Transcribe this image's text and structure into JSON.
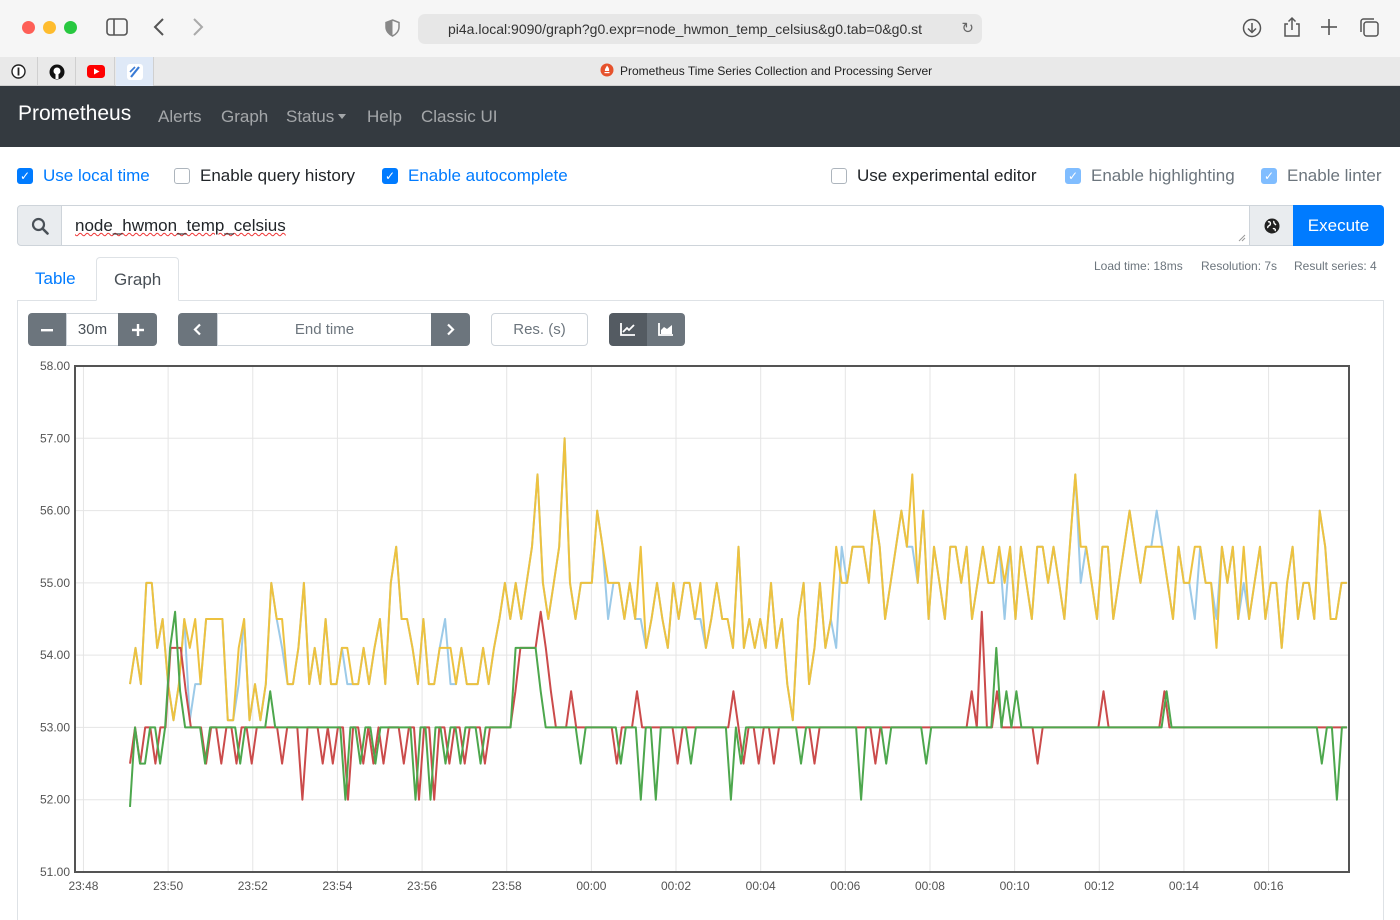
{
  "browser": {
    "url": "pi4a.local:9090/graph?g0.expr=node_hwmon_temp_celsius&g0.tab=0&g0.st",
    "tab_title": "Prometheus Time Series Collection and Processing Server"
  },
  "navbar": {
    "brand": "Prometheus",
    "links": [
      "Alerts",
      "Graph",
      "Status",
      "Help",
      "Classic UI"
    ]
  },
  "options": {
    "use_local_time": "Use local time",
    "enable_query_history": "Enable query history",
    "enable_autocomplete": "Enable autocomplete",
    "use_experimental_editor": "Use experimental editor",
    "enable_highlighting": "Enable highlighting",
    "enable_linter": "Enable linter",
    "checked": {
      "use_local_time": true,
      "enable_query_history": false,
      "enable_autocomplete": true,
      "use_experimental_editor": false,
      "enable_highlighting": true,
      "enable_linter": true
    }
  },
  "query": {
    "expression": "node_hwmon_temp_celsius",
    "execute_label": "Execute"
  },
  "stats": {
    "load_time": "Load time: 18ms",
    "resolution": "Resolution: 7s",
    "result_series": "Result series: 4"
  },
  "tabs": {
    "table": "Table",
    "graph": "Graph"
  },
  "controls": {
    "range": "30m",
    "end_time_placeholder": "End time",
    "resolution_placeholder": "Res. (s)"
  },
  "colors": {
    "series": [
      "#9ccae8",
      "#edc240",
      "#cb4b4b",
      "#4da74d"
    ]
  },
  "chart_data": {
    "type": "line",
    "ylim": [
      51,
      58
    ],
    "yticks": [
      "51.00",
      "52.00",
      "53.00",
      "54.00",
      "55.00",
      "56.00",
      "57.00",
      "58.00"
    ],
    "xticks": [
      "23:48",
      "23:50",
      "23:52",
      "23:54",
      "23:56",
      "23:58",
      "00:00",
      "00:02",
      "00:04",
      "00:06",
      "00:08",
      "00:10",
      "00:12",
      "00:14",
      "00:16"
    ],
    "xlim_minutes": [
      -12.2,
      17.9
    ],
    "x_start_minutes": -10.9,
    "x_end_minutes": 17.85,
    "series": [
      {
        "color": "#9ccae8",
        "values": [
          53.6,
          54.1,
          53.6,
          55.0,
          55.0,
          54.1,
          54.5,
          53.6,
          53.1,
          53.6,
          54.5,
          53.1,
          53.6,
          53.6,
          54.5,
          54.5,
          54.5,
          54.5,
          53.1,
          53.1,
          53.6,
          54.5,
          53.1,
          53.6,
          53.1,
          53.6,
          55.0,
          54.5,
          54.1,
          53.6,
          53.6,
          54.1,
          55.0,
          53.6,
          54.1,
          53.6,
          54.5,
          53.6,
          53.6,
          54.1,
          53.6,
          53.6,
          53.6,
          54.1,
          53.6,
          54.1,
          54.5,
          53.6,
          55.0,
          55.5,
          54.5,
          54.5,
          54.1,
          53.6,
          54.5,
          53.6,
          53.6,
          54.1,
          54.5,
          53.6,
          53.6,
          54.1,
          53.6,
          53.6,
          53.6,
          54.1,
          53.6,
          54.1,
          54.5,
          55.0,
          54.5,
          55.0,
          54.5,
          55.0,
          55.5,
          56.5,
          55.0,
          54.5,
          55.0,
          55.5,
          57.0,
          55.0,
          54.5,
          55.0,
          55.0,
          55.0,
          56.0,
          55.5,
          54.5,
          55.0,
          55.0,
          54.5,
          55.0,
          54.5,
          54.5,
          54.1,
          54.5,
          55.0,
          54.5,
          54.1,
          55.0,
          54.5,
          55.0,
          55.0,
          54.5,
          54.5,
          54.1,
          54.5,
          55.0,
          54.5,
          54.5,
          54.1,
          55.5,
          54.1,
          54.5,
          54.1,
          54.5,
          54.1,
          55.0,
          54.1,
          54.5,
          53.6,
          53.1,
          54.5,
          55.0,
          53.6,
          54.1,
          55.0,
          54.1,
          54.5,
          54.1,
          55.5,
          55.0,
          55.5,
          55.5,
          55.5,
          55.0,
          56.0,
          55.5,
          54.5,
          55.0,
          55.5,
          56.0,
          55.5,
          55.5,
          55.0,
          56.0,
          54.5,
          55.5,
          55.0,
          54.5,
          55.5,
          55.5,
          55.0,
          55.5,
          54.5,
          55.0,
          55.5,
          55.0,
          55.0,
          55.5,
          54.5,
          55.5,
          54.5,
          55.5,
          55.0,
          54.5,
          55.5,
          55.5,
          55.0,
          55.5,
          55.0,
          54.5,
          55.5,
          56.5,
          55.0,
          55.5,
          55.0,
          54.5,
          55.5,
          55.5,
          54.5,
          55.0,
          55.5,
          56.0,
          55.5,
          55.0,
          55.5,
          55.5,
          56.0,
          55.5,
          55.0,
          54.5,
          55.5,
          55.0,
          55.0,
          54.5,
          55.5,
          55.0,
          55.0,
          54.5,
          55.5,
          55.0,
          55.5,
          54.5,
          55.0,
          54.5,
          55.0,
          55.5,
          54.5,
          55.0,
          55.0,
          54.1,
          55.0,
          55.5,
          54.5,
          55.0,
          55.0,
          54.5,
          56.0,
          55.5,
          54.5,
          54.5,
          55.0,
          55.0
        ]
      },
      {
        "color": "#edc240",
        "values": [
          53.6,
          54.1,
          53.6,
          55.0,
          55.0,
          54.1,
          54.5,
          53.6,
          53.1,
          53.6,
          54.5,
          54.1,
          54.5,
          53.6,
          54.5,
          54.5,
          54.5,
          54.5,
          53.1,
          53.1,
          54.1,
          54.5,
          53.1,
          53.6,
          53.1,
          53.6,
          55.0,
          54.5,
          54.5,
          53.6,
          53.6,
          54.1,
          55.0,
          53.6,
          54.1,
          53.6,
          54.5,
          53.6,
          53.6,
          54.1,
          54.1,
          53.6,
          53.6,
          54.1,
          53.6,
          54.1,
          54.5,
          53.6,
          55.0,
          55.5,
          54.5,
          54.5,
          54.1,
          53.6,
          54.5,
          53.6,
          53.6,
          54.1,
          54.1,
          54.1,
          53.6,
          54.1,
          53.6,
          53.6,
          53.6,
          54.1,
          53.6,
          54.1,
          54.5,
          55.0,
          54.5,
          55.0,
          54.5,
          55.0,
          55.5,
          56.5,
          55.0,
          54.5,
          55.0,
          55.5,
          57.0,
          55.0,
          54.5,
          55.0,
          55.0,
          55.0,
          56.0,
          55.5,
          55.0,
          55.0,
          55.0,
          54.5,
          55.0,
          54.5,
          55.5,
          54.1,
          54.5,
          55.0,
          54.5,
          54.1,
          55.0,
          54.5,
          55.0,
          55.0,
          54.5,
          55.0,
          54.1,
          54.5,
          55.0,
          54.5,
          54.5,
          54.1,
          55.5,
          54.1,
          54.5,
          54.1,
          54.5,
          54.1,
          55.0,
          54.1,
          54.5,
          53.6,
          53.1,
          54.5,
          55.0,
          53.6,
          54.1,
          55.0,
          54.1,
          54.5,
          55.5,
          55.0,
          55.0,
          55.5,
          55.5,
          55.5,
          55.0,
          56.0,
          55.5,
          54.5,
          55.0,
          55.5,
          56.0,
          55.5,
          56.5,
          55.0,
          56.0,
          54.5,
          55.5,
          55.0,
          54.5,
          55.5,
          55.5,
          55.0,
          55.5,
          54.5,
          55.0,
          55.5,
          55.0,
          55.0,
          55.5,
          55.0,
          55.5,
          54.5,
          55.5,
          55.0,
          54.5,
          55.5,
          55.5,
          55.0,
          55.5,
          55.0,
          54.5,
          55.5,
          56.5,
          55.5,
          55.5,
          55.0,
          54.5,
          55.5,
          55.5,
          54.5,
          55.0,
          55.5,
          56.0,
          55.5,
          55.0,
          55.5,
          55.5,
          55.5,
          55.5,
          55.0,
          54.5,
          55.5,
          55.0,
          55.0,
          55.5,
          55.5,
          55.0,
          55.0,
          54.1,
          55.5,
          55.0,
          55.5,
          54.5,
          55.5,
          54.5,
          55.0,
          55.5,
          54.5,
          55.0,
          55.0,
          54.1,
          55.0,
          55.5,
          54.5,
          55.0,
          55.0,
          54.5,
          56.0,
          55.5,
          54.5,
          54.5,
          55.0,
          55.0
        ]
      },
      {
        "color": "#cb4b4b",
        "values": [
          52.5,
          53.0,
          52.5,
          53.0,
          53.0,
          52.5,
          53.0,
          53.0,
          54.1,
          54.1,
          54.1,
          53.5,
          53.0,
          53.0,
          53.0,
          52.5,
          53.0,
          53.0,
          52.5,
          53.0,
          53.0,
          52.5,
          53.0,
          53.0,
          52.5,
          53.0,
          53.0,
          53.0,
          53.0,
          53.0,
          52.5,
          53.0,
          53.0,
          53.0,
          52.0,
          53.0,
          53.0,
          53.0,
          52.5,
          53.0,
          52.5,
          53.0,
          53.0,
          52.0,
          53.0,
          53.0,
          52.5,
          53.0,
          52.5,
          53.0,
          52.5,
          53.0,
          53.0,
          53.0,
          52.5,
          53.0,
          53.0,
          52.0,
          53.0,
          53.0,
          52.0,
          53.0,
          53.0,
          52.5,
          53.0,
          53.0,
          52.5,
          53.0,
          53.0,
          53.0,
          52.5,
          53.0,
          53.0,
          53.0,
          53.0,
          53.0,
          53.5,
          54.1,
          54.1,
          54.1,
          54.1,
          54.6,
          54.1,
          53.5,
          53.0,
          53.0,
          53.0,
          53.5,
          53.0,
          53.0,
          53.0,
          53.0,
          53.0,
          53.0,
          53.0,
          53.0,
          52.5,
          53.0,
          53.0,
          53.0,
          53.5,
          53.0,
          53.0,
          53.0,
          53.0,
          53.0,
          53.0,
          53.0,
          52.5,
          53.0,
          53.0,
          53.0,
          53.0,
          53.0,
          53.0,
          53.0,
          53.0,
          53.0,
          53.0,
          53.5,
          53.0,
          52.5,
          53.0,
          53.0,
          52.5,
          53.0,
          53.0,
          52.5,
          53.0,
          53.0,
          53.0,
          53.0,
          53.0,
          53.0,
          53.0,
          52.5,
          53.0,
          53.0,
          53.0,
          53.0,
          53.0,
          53.0,
          53.0,
          53.0,
          53.0,
          53.0,
          53.0,
          52.5,
          53.0,
          53.0,
          53.0,
          53.0,
          53.0,
          53.0,
          53.0,
          53.0,
          53.0,
          53.0,
          53.0,
          53.0,
          53.0,
          53.0,
          53.0,
          53.0,
          53.0,
          53.0,
          53.5,
          53.0,
          54.6,
          53.0,
          53.0,
          53.5,
          53.0,
          53.0,
          53.0,
          53.0,
          53.0,
          53.0,
          53.0,
          52.5,
          53.0,
          53.0,
          53.0,
          53.0,
          53.0,
          53.0,
          53.0,
          53.0,
          53.0,
          53.0,
          53.0,
          53.0,
          53.5,
          53.0,
          53.0,
          53.0,
          53.0,
          53.0,
          53.0,
          53.0,
          53.0,
          53.0,
          53.0,
          53.0,
          53.5,
          53.0,
          53.0,
          53.0,
          53.0,
          53.0,
          53.0,
          53.0,
          53.0,
          53.0,
          53.0,
          53.0,
          53.0,
          53.0,
          53.0,
          53.0,
          53.0,
          53.0,
          53.0,
          53.0,
          53.0,
          53.0,
          53.0,
          53.0,
          53.0,
          53.0,
          53.0,
          53.0,
          53.0,
          53.0,
          53.0,
          53.0,
          53.0,
          53.0,
          53.0,
          53.0,
          53.0
        ]
      },
      {
        "color": "#4da74d",
        "values": [
          51.9,
          53.0,
          52.5,
          52.5,
          53.0,
          53.0,
          52.5,
          53.0,
          54.1,
          54.6,
          53.5,
          53.0,
          53.0,
          53.0,
          53.0,
          52.5,
          53.0,
          53.0,
          53.0,
          53.0,
          53.0,
          53.0,
          52.5,
          53.0,
          53.0,
          53.0,
          53.0,
          53.0,
          53.5,
          53.0,
          53.0,
          53.0,
          53.0,
          53.0,
          53.0,
          53.0,
          53.0,
          53.0,
          53.0,
          53.0,
          53.0,
          53.0,
          53.0,
          52.0,
          53.0,
          53.0,
          52.5,
          53.0,
          53.0,
          52.5,
          53.0,
          53.0,
          53.0,
          53.0,
          53.0,
          53.0,
          53.0,
          52.0,
          53.0,
          53.0,
          52.0,
          53.0,
          53.0,
          52.5,
          53.0,
          53.0,
          52.5,
          53.0,
          53.0,
          53.0,
          52.5,
          53.0,
          53.0,
          53.0,
          53.0,
          53.0,
          53.0,
          54.1,
          54.1,
          54.1,
          54.1,
          54.1,
          53.5,
          53.0,
          53.0,
          53.0,
          53.0,
          53.0,
          53.0,
          53.0,
          52.5,
          53.0,
          53.0,
          53.0,
          53.0,
          53.0,
          53.0,
          53.0,
          52.5,
          53.0,
          53.0,
          53.0,
          52.0,
          53.0,
          53.0,
          52.0,
          53.0,
          53.0,
          53.0,
          53.0,
          53.0,
          53.0,
          52.5,
          53.0,
          53.0,
          53.0,
          53.0,
          53.0,
          53.0,
          53.0,
          52.0,
          53.0,
          52.5,
          53.0,
          53.0,
          53.0,
          53.0,
          53.0,
          53.0,
          53.0,
          53.0,
          53.0,
          53.0,
          53.0,
          52.5,
          53.0,
          53.0,
          53.0,
          53.0,
          53.0,
          53.0,
          53.0,
          53.0,
          53.0,
          53.0,
          53.0,
          52.0,
          53.0,
          53.0,
          53.0,
          53.0,
          52.5,
          53.0,
          53.0,
          53.0,
          53.0,
          53.0,
          53.0,
          53.0,
          52.5,
          53.0,
          53.0,
          53.0,
          53.0,
          53.0,
          53.0,
          53.0,
          53.0,
          53.0,
          53.0,
          53.0,
          53.0,
          53.0,
          54.1,
          53.0,
          53.5,
          53.0,
          53.5,
          53.0,
          53.0,
          53.0,
          53.0,
          53.0,
          53.0,
          53.0,
          53.0,
          53.0,
          53.0,
          53.0,
          53.0,
          53.0,
          53.0,
          53.0,
          53.0,
          53.0,
          53.0,
          53.0,
          53.0,
          53.0,
          53.0,
          53.0,
          53.0,
          53.0,
          53.0,
          53.0,
          53.0,
          53.0,
          53.5,
          53.0,
          53.0,
          53.0,
          53.0,
          53.0,
          53.0,
          53.0,
          53.0,
          53.0,
          53.0,
          53.0,
          53.0,
          53.0,
          53.0,
          53.0,
          53.0,
          53.0,
          53.0,
          53.0,
          53.0,
          53.0,
          53.0,
          53.0,
          53.0,
          53.0,
          53.0,
          53.0,
          53.0,
          53.0,
          53.0,
          52.5,
          53.0,
          53.0,
          52.0,
          53.0,
          53.0
        ]
      }
    ]
  }
}
